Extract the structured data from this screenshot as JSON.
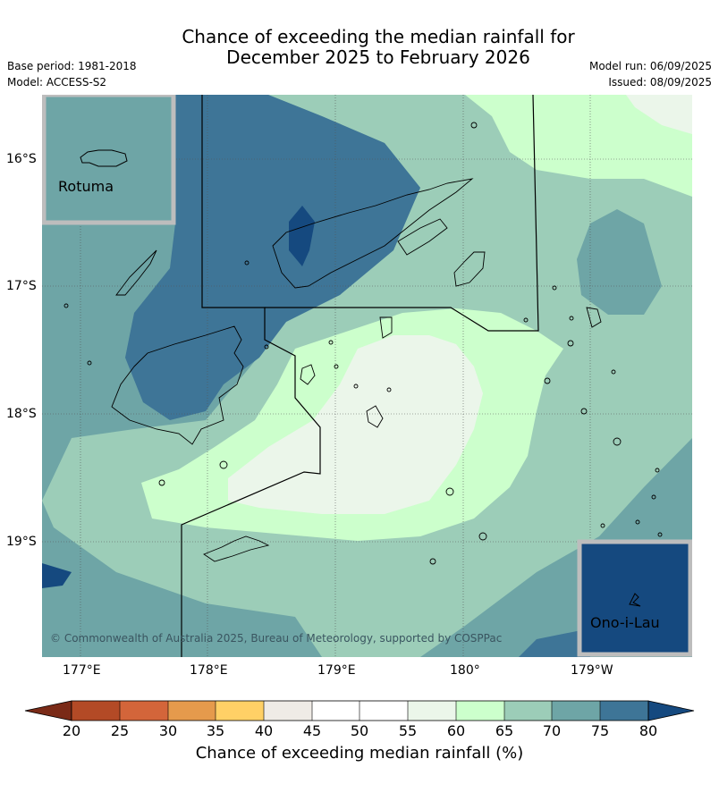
{
  "title_line1": "Chance of exceeding the median rainfall for",
  "title_line2": "December 2025 to February 2026",
  "base_period": "Base period: 1981-2018",
  "model": "Model: ACCESS-S2",
  "model_run": "Model run: 06/09/2025",
  "issued": "Issued: 08/09/2025",
  "copyright": "© Commonwealth of Australia 2025, Bureau of Meteorology, supported by COSPPac",
  "inset_rotuma": "Rotuma",
  "inset_ono": "Ono-i-Lau",
  "lon_labels": [
    "177°E",
    "178°E",
    "179°E",
    "180°",
    "179°W"
  ],
  "lat_labels": [
    "16°S",
    "17°S",
    "18°S",
    "19°S"
  ],
  "colorbar": {
    "ticks": [
      "20",
      "25",
      "30",
      "35",
      "40",
      "45",
      "50",
      "55",
      "60",
      "65",
      "70",
      "75",
      "80"
    ],
    "label": "Chance of exceeding median rainfall (%)",
    "colors": {
      "below_20": "#7a2a17",
      "20_25": "#b34a26",
      "25_30": "#d3653a",
      "30_35": "#e59a4c",
      "35_40": "#ffd066",
      "40_45": "#efebe6",
      "45_50": "#ffffff",
      "50_55": "#ffffff",
      "55_60": "#ebf6ea",
      "60_65": "#ccffcc",
      "65_70": "#9ccdb8",
      "70_75": "#6ea5a6",
      "75_80": "#3e7597",
      "above_80": "#15497f"
    }
  }
}
